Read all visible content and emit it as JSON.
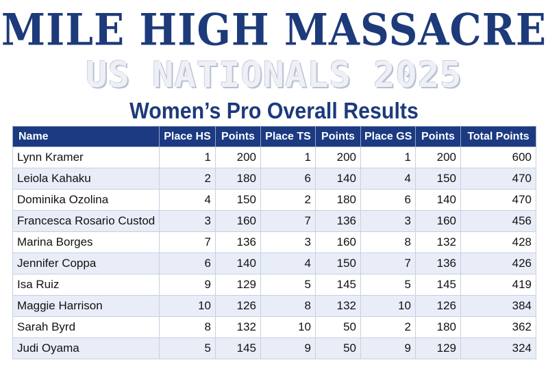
{
  "header": {
    "title": "MILE HIGH MASSACRE",
    "subtitle": "US NATIONALS 2025",
    "section_title": "Women’s Pro Overall Results"
  },
  "table": {
    "columns": [
      "Name",
      "Place HS",
      "Points",
      "Place TS",
      "Points",
      "Place GS",
      "Points",
      "Total Points"
    ],
    "rows": [
      [
        "Lynn Kramer",
        "1",
        "200",
        "1",
        "200",
        "1",
        "200",
        "600"
      ],
      [
        "Leiola Kahaku",
        "2",
        "180",
        "6",
        "140",
        "4",
        "150",
        "470"
      ],
      [
        "Dominika Ozolina",
        "4",
        "150",
        "2",
        "180",
        "6",
        "140",
        "470"
      ],
      [
        "Francesca Rosario Custod",
        "3",
        "160",
        "7",
        "136",
        "3",
        "160",
        "456"
      ],
      [
        "Marina Borges",
        "7",
        "136",
        "3",
        "160",
        "8",
        "132",
        "428"
      ],
      [
        "Jennifer Coppa",
        "6",
        "140",
        "4",
        "150",
        "7",
        "136",
        "426"
      ],
      [
        "Isa Ruiz",
        "9",
        "129",
        "5",
        "145",
        "5",
        "145",
        "419"
      ],
      [
        "Maggie Harrison",
        "10",
        "126",
        "8",
        "132",
        "10",
        "126",
        "384"
      ],
      [
        "Sarah Byrd",
        "8",
        "132",
        "10",
        "50",
        "2",
        "180",
        "362"
      ],
      [
        "Judi Oyama",
        "5",
        "145",
        "9",
        "50",
        "9",
        "129",
        "324"
      ]
    ]
  },
  "colors": {
    "header_bg": "#1b3a82",
    "title": "#1d3a7a",
    "row_alt": "#e8edf8"
  }
}
